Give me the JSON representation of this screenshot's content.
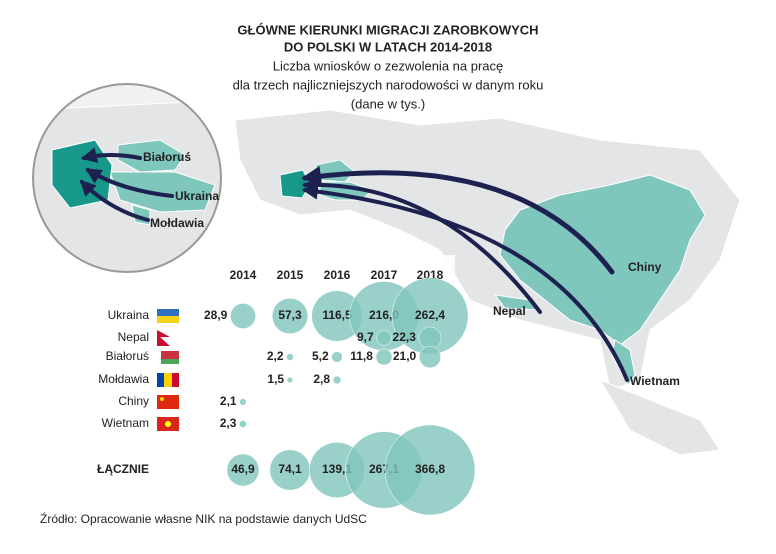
{
  "chart_data": {
    "type": "bubble",
    "title": [
      "GŁÓWNE KIERUNKI MIGRACJI ZAROBKOWYCH",
      "DO POLSKI W LATACH 2014-2018"
    ],
    "subtitle": [
      "Liczba wniosków o zezwolenia na pracę",
      "dla trzech najliczniejszych narodowości w danym roku",
      "(dane w tys.)"
    ],
    "annotations": [
      "Białoruś",
      "Ukraina",
      "Mołdawia",
      "Chiny",
      "Nepal",
      "Wietnam"
    ],
    "categories": [
      "2014",
      "2015",
      "2016",
      "2017",
      "2018"
    ],
    "color": "#7fc6bd",
    "series": [
      {
        "name": "Ukraina",
        "values": [
          28.9,
          57.3,
          116.5,
          216.0,
          262.4
        ],
        "value_labels": [
          "28,9",
          "57,3",
          "116,5",
          "216,0",
          "262,4"
        ]
      },
      {
        "name": "Nepal",
        "values": [
          null,
          null,
          null,
          9.7,
          22.3
        ],
        "value_labels": [
          null,
          null,
          null,
          "9,7",
          "22,3"
        ]
      },
      {
        "name": "Białoruś",
        "values": [
          null,
          2.2,
          5.2,
          11.8,
          21.0
        ],
        "value_labels": [
          null,
          "2,2",
          "5,2",
          "11,8",
          "21,0"
        ]
      },
      {
        "name": "Mołdawia",
        "values": [
          null,
          1.5,
          2.8,
          null,
          null
        ],
        "value_labels": [
          null,
          "1,5",
          "2,8",
          null,
          null
        ]
      },
      {
        "name": "Chiny",
        "values": [
          2.1,
          null,
          null,
          null,
          null
        ],
        "value_labels": [
          "2,1",
          null,
          null,
          null,
          null
        ]
      },
      {
        "name": "Wietnam",
        "values": [
          2.3,
          null,
          null,
          null,
          null
        ],
        "value_labels": [
          "2,3",
          null,
          null,
          null,
          null
        ]
      },
      {
        "name": "ŁĄCZNIE",
        "values": [
          46.9,
          74.1,
          139.1,
          267.1,
          366.8
        ],
        "value_labels": [
          "46,9",
          "74,1",
          "139,1",
          "267,1",
          "366,8"
        ]
      }
    ],
    "source": "Źródło: Opracowanie własne NIK na podstawie danych UdSC"
  }
}
